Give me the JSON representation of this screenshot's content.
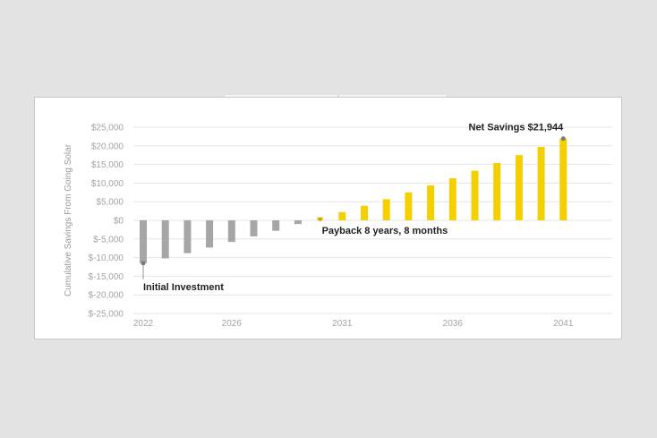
{
  "colors": {
    "negative": "#a6a6a6",
    "positive": "#f5d000",
    "grid": "#e4e4e4",
    "marker": "#7a7a7a"
  },
  "chart_data": {
    "type": "bar",
    "title": "",
    "xlabel": "",
    "ylabel": "Cumulative Savings From Going Solar",
    "ylim": [
      -25000,
      25000
    ],
    "yticks": [
      25000,
      20000,
      15000,
      10000,
      5000,
      0,
      -5000,
      -10000,
      -15000,
      -20000,
      -25000
    ],
    "ytick_labels": [
      "$25,000",
      "$20,000",
      "$15,000",
      "$10,000",
      "$5,000",
      "$0",
      "$-5,000",
      "$-10,000",
      "$-15,000",
      "$-20,000",
      "$-25,000"
    ],
    "xtick_labels": [
      "2022",
      "2026",
      "2031",
      "2036",
      "2041"
    ],
    "categories": [
      "2022",
      "2023",
      "2024",
      "2025",
      "2026",
      "2027",
      "2028",
      "2029",
      "2030",
      "2031",
      "2032",
      "2033",
      "2034",
      "2035",
      "2036",
      "2037",
      "2038",
      "2039",
      "2040",
      "2041"
    ],
    "values": [
      -11500,
      -10200,
      -8800,
      -7300,
      -5800,
      -4300,
      -2800,
      -1000,
      300,
      2200,
      3900,
      5700,
      7500,
      9400,
      11300,
      13300,
      15400,
      17500,
      19700,
      21944
    ],
    "annotations": {
      "initial": "Initial Investment",
      "payback": "Payback 8 years, 8 months",
      "net": "Net Savings $21,944"
    }
  }
}
